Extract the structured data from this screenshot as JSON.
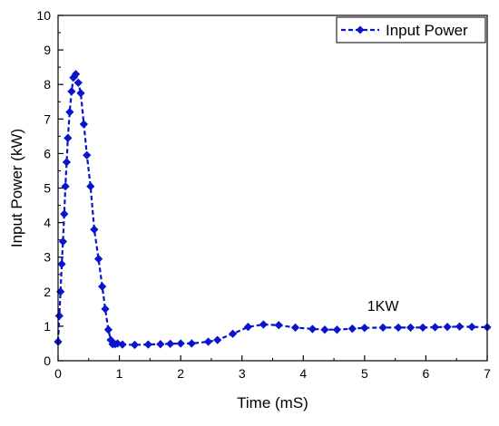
{
  "chart_data": {
    "type": "line",
    "xlabel": "Time (mS)",
    "ylabel": "Input Power (kW)",
    "xlim": [
      0,
      7
    ],
    "ylim": [
      0,
      10
    ],
    "xticks": [
      "0",
      "1",
      "2",
      "3",
      "4",
      "5",
      "6",
      "7"
    ],
    "yticks": [
      "0",
      "1",
      "2",
      "3",
      "4",
      "5",
      "6",
      "7",
      "8",
      "9",
      "10"
    ],
    "legend_position": "top-right",
    "annotation": "1KW",
    "color": "#0a14cc",
    "series": [
      {
        "name": "Input Power",
        "line_style": "dashed",
        "marker": "diamond",
        "x": [
          0.0,
          0.02,
          0.04,
          0.06,
          0.08,
          0.1,
          0.12,
          0.14,
          0.16,
          0.19,
          0.22,
          0.25,
          0.29,
          0.33,
          0.37,
          0.42,
          0.47,
          0.53,
          0.59,
          0.66,
          0.72,
          0.77,
          0.82,
          0.86,
          0.89,
          0.93,
          0.97,
          1.05,
          1.25,
          1.47,
          1.67,
          1.83,
          2.0,
          2.18,
          2.45,
          2.6,
          2.85,
          3.1,
          3.35,
          3.6,
          3.87,
          4.15,
          4.35,
          4.55,
          4.8,
          5.0,
          5.3,
          5.55,
          5.75,
          5.95,
          6.15,
          6.35,
          6.55,
          6.75,
          7.0
        ],
        "y": [
          0.55,
          1.3,
          2.0,
          2.8,
          3.45,
          4.25,
          5.05,
          5.75,
          6.45,
          7.2,
          7.8,
          8.2,
          8.3,
          8.05,
          7.75,
          6.85,
          5.95,
          5.05,
          3.8,
          2.95,
          2.15,
          1.5,
          0.9,
          0.6,
          0.48,
          0.48,
          0.5,
          0.47,
          0.46,
          0.47,
          0.48,
          0.49,
          0.5,
          0.5,
          0.55,
          0.6,
          0.78,
          0.98,
          1.05,
          1.03,
          0.96,
          0.92,
          0.9,
          0.9,
          0.93,
          0.95,
          0.96,
          0.96,
          0.96,
          0.96,
          0.97,
          0.98,
          0.99,
          0.98,
          0.97
        ]
      }
    ]
  }
}
